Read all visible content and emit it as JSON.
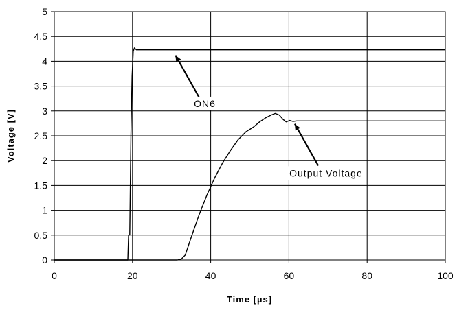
{
  "chart_data": {
    "type": "line",
    "title": "",
    "xlabel": "Time [µs]",
    "ylabel": "Voltage [V]",
    "xlim": [
      0,
      100
    ],
    "ylim": [
      0,
      5
    ],
    "x_ticks": [
      "0",
      "20",
      "40",
      "60",
      "80",
      "100"
    ],
    "y_ticks": [
      "0",
      "0.5",
      "1",
      "1.5",
      "2",
      "2.5",
      "3",
      "3.5",
      "4",
      "4.5",
      "5"
    ],
    "grid": true,
    "legend": "none",
    "series": [
      {
        "name": "ON6",
        "color": "#000000",
        "points": [
          [
            0,
            0
          ],
          [
            18.8,
            0
          ],
          [
            19.0,
            0.5
          ],
          [
            19.3,
            0.5
          ],
          [
            19.6,
            2.5
          ],
          [
            19.9,
            3.7
          ],
          [
            20.2,
            4.2
          ],
          [
            20.5,
            4.27
          ],
          [
            21.0,
            4.23
          ],
          [
            100,
            4.23
          ]
        ]
      },
      {
        "name": "Output Voltage",
        "color": "#000000",
        "points": [
          [
            0,
            0
          ],
          [
            31.5,
            0
          ],
          [
            32.5,
            0.02
          ],
          [
            33.5,
            0.1
          ],
          [
            35,
            0.45
          ],
          [
            37,
            0.9
          ],
          [
            39,
            1.3
          ],
          [
            41,
            1.65
          ],
          [
            43,
            1.95
          ],
          [
            45,
            2.2
          ],
          [
            47,
            2.42
          ],
          [
            49,
            2.58
          ],
          [
            51,
            2.68
          ],
          [
            52.5,
            2.78
          ],
          [
            54,
            2.86
          ],
          [
            55.5,
            2.92
          ],
          [
            56.5,
            2.95
          ],
          [
            57.5,
            2.92
          ],
          [
            58.5,
            2.83
          ],
          [
            59.3,
            2.78
          ],
          [
            60.2,
            2.81
          ],
          [
            61,
            2.79
          ],
          [
            62,
            2.8
          ],
          [
            100,
            2.8
          ]
        ]
      }
    ],
    "annotations": [
      {
        "id": "on6",
        "text": "ON6",
        "x": 38.5,
        "y": 3.15,
        "target": [
          31,
          4.12
        ],
        "tail": [
          37,
          3.28
        ]
      },
      {
        "id": "output",
        "text": "Output Voltage",
        "x": 69.5,
        "y": 1.75,
        "target": [
          61.5,
          2.74
        ],
        "tail": [
          67.5,
          1.9
        ]
      }
    ]
  }
}
